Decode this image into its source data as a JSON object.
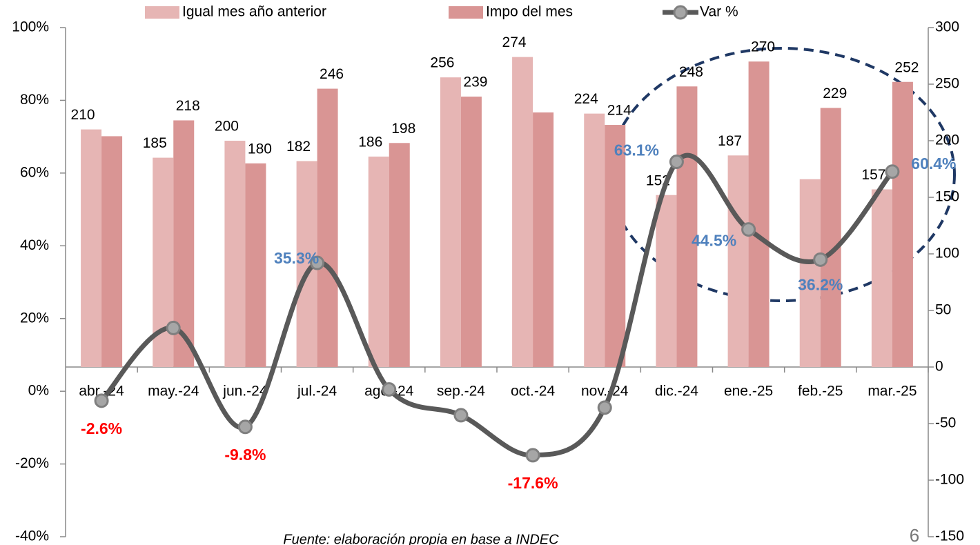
{
  "chart_data": {
    "type": "bar-line",
    "categories": [
      "abr.-24",
      "may.-24",
      "jun.-24",
      "jul.-24",
      "ago.-24",
      "sep.-24",
      "oct.-24",
      "nov.-24",
      "dic.-24",
      "ene.-25",
      "feb.-25",
      "mar.-25"
    ],
    "series": [
      {
        "name": "Igual mes año anterior",
        "type": "bar",
        "axis": "y2",
        "color": "#e6b5b4",
        "values": [
          210,
          185,
          200,
          182,
          186,
          256,
          274,
          224,
          152,
          187,
          166,
          157
        ],
        "value_labels": [
          "210",
          "185",
          "200",
          "182",
          "186",
          "256",
          "274",
          "224",
          "152",
          "187",
          null,
          "157"
        ]
      },
      {
        "name": "Impo del mes",
        "type": "bar",
        "axis": "y2",
        "color": "#d99594",
        "values": [
          204,
          218,
          180,
          246,
          198,
          239,
          225,
          214,
          248,
          270,
          229,
          252
        ],
        "value_labels": [
          null,
          "218",
          "180",
          "246",
          "198",
          "239",
          null,
          "214",
          "248",
          "270",
          "229",
          "252"
        ]
      },
      {
        "name": "Var %",
        "type": "line",
        "axis": "y",
        "color": "#595959",
        "values": [
          -2.6,
          17.4,
          -9.8,
          35.3,
          0.5,
          -6.6,
          -17.6,
          -4.5,
          63.1,
          44.5,
          36.2,
          60.4
        ],
        "value_labels": [
          "-2.6%",
          null,
          "-9.8%",
          "35.3%",
          null,
          null,
          "-17.6%",
          null,
          "63.1%",
          "44.5%",
          "36.2%",
          "60.4%"
        ]
      }
    ],
    "label_color_negative": "#ff0000",
    "label_color_positive": "#4f81bd",
    "ylim": [
      -40,
      100
    ],
    "yticks": [
      {
        "value": -40,
        "label": "-40%"
      },
      {
        "value": -20,
        "label": "-20%"
      },
      {
        "value": 0,
        "label": "0%"
      },
      {
        "value": 20,
        "label": "20%"
      },
      {
        "value": 40,
        "label": "40%"
      },
      {
        "value": 60,
        "label": "60%"
      },
      {
        "value": 80,
        "label": "80%"
      },
      {
        "value": 100,
        "label": "100%"
      }
    ],
    "y2lim": [
      -150,
      300
    ],
    "y2ticks": [
      -150,
      -100,
      -50,
      0,
      50,
      100,
      150,
      200,
      250,
      300
    ],
    "source": "Fuente: elaboración propia en base a INDEC",
    "page_number": "6"
  }
}
